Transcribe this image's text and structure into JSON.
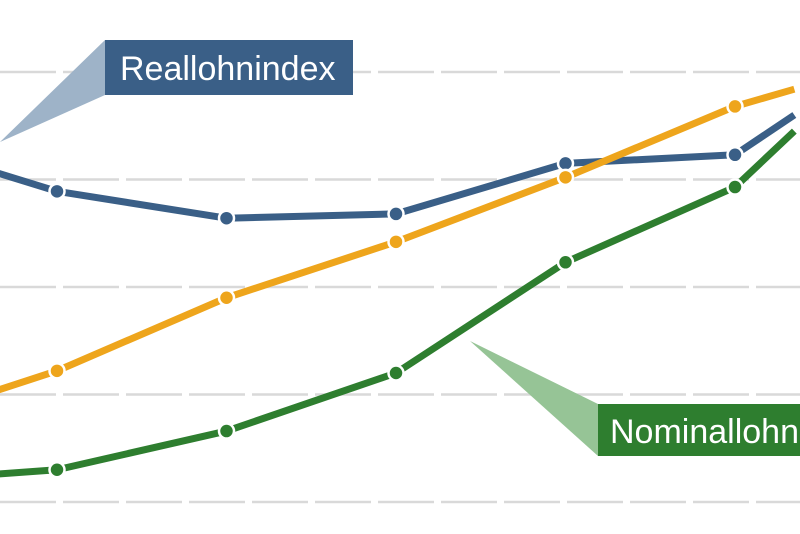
{
  "chart_data": {
    "type": "line",
    "title": "",
    "xlabel": "",
    "ylabel": "",
    "ylim": [
      0,
      5
    ],
    "grid": true,
    "x": [
      -0.35,
      0,
      1,
      2,
      3,
      4,
      4.35
    ],
    "series": [
      {
        "name": "Reallohnindex",
        "color": "#3a5f87",
        "values": [
          3.06,
          2.89,
          2.64,
          2.68,
          3.15,
          3.23,
          3.6
        ]
      },
      {
        "name": "",
        "color": "#eea51c",
        "values": [
          1.04,
          1.22,
          1.9,
          2.42,
          3.02,
          3.68,
          3.84
        ]
      },
      {
        "name": "Nominallohn",
        "color": "#2e7e2f",
        "values": [
          0.26,
          0.3,
          0.66,
          1.2,
          2.23,
          2.93,
          3.45
        ]
      }
    ]
  },
  "annotations": {
    "real": {
      "text": "Reallohnindex",
      "box_color": "#3a5f87",
      "tail_color": "#9eb3c8"
    },
    "nominal": {
      "text": "Nominallohn",
      "box_color": "#2e7e2f",
      "tail_color": "#96c496"
    }
  }
}
